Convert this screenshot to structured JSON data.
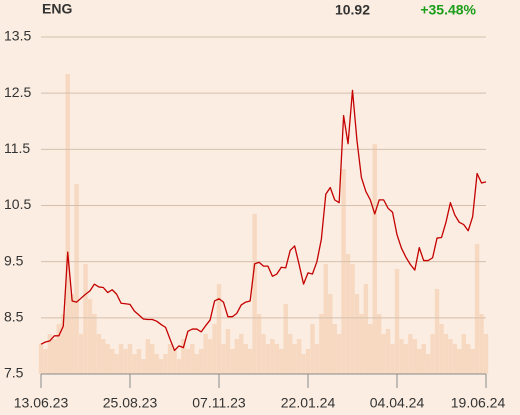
{
  "header": {
    "symbol": "ENG",
    "last": "10.92",
    "change": "+35.48%"
  },
  "chart_data": {
    "type": "line",
    "categories": [
      "13.06.23",
      null,
      null,
      null,
      null,
      null,
      null,
      null,
      null,
      null,
      null,
      null,
      null,
      null,
      null,
      null,
      null,
      null,
      null,
      null,
      "25.08.23",
      null,
      null,
      null,
      null,
      null,
      null,
      null,
      null,
      null,
      null,
      null,
      null,
      null,
      null,
      null,
      null,
      null,
      null,
      null,
      "07.11.23",
      null,
      null,
      null,
      null,
      null,
      null,
      null,
      null,
      null,
      null,
      null,
      null,
      null,
      null,
      null,
      null,
      null,
      null,
      null,
      "22.01.24",
      null,
      null,
      null,
      null,
      null,
      null,
      null,
      null,
      null,
      null,
      null,
      null,
      null,
      null,
      null,
      null,
      null,
      null,
      null,
      "04.04.24",
      null,
      null,
      null,
      null,
      null,
      null,
      null,
      null,
      null,
      null,
      null,
      null,
      null,
      null,
      null,
      null,
      null,
      null,
      null,
      "19.06.24"
    ],
    "series": [
      {
        "color": "#c40000",
        "values": [
          8.03,
          8.07,
          8.09,
          8.18,
          8.18,
          8.35,
          9.67,
          8.8,
          8.78,
          8.85,
          8.92,
          8.98,
          9.1,
          9.05,
          9.04,
          8.95,
          9.0,
          8.92,
          8.76,
          8.75,
          8.74,
          8.62,
          8.55,
          8.48,
          8.47,
          8.47,
          8.44,
          8.38,
          8.33,
          8.12,
          7.92,
          8.0,
          7.97,
          8.26,
          8.3,
          8.3,
          8.25,
          8.36,
          8.46,
          8.8,
          8.84,
          8.78,
          8.52,
          8.52,
          8.58,
          8.73,
          8.78,
          8.8,
          9.46,
          9.49,
          9.42,
          9.42,
          9.24,
          9.28,
          9.4,
          9.39,
          9.7,
          9.78,
          9.45,
          9.1,
          9.3,
          9.28,
          9.5,
          9.9,
          10.7,
          10.82,
          10.6,
          10.55,
          12.1,
          11.6,
          12.55,
          11.66,
          11.0,
          10.75,
          10.6,
          10.35,
          10.6,
          10.6,
          10.45,
          10.38,
          9.98,
          9.74,
          9.58,
          9.45,
          9.35,
          9.75,
          9.52,
          9.52,
          9.57,
          9.92,
          9.93,
          10.2,
          10.55,
          10.33,
          10.2,
          10.16,
          10.05,
          10.3,
          11.07,
          10.9,
          10.92
        ]
      }
    ],
    "volume": {
      "color": "#f7d9c2",
      "values": [
        30,
        25,
        40,
        35,
        50,
        60,
        300,
        80,
        190,
        40,
        110,
        75,
        60,
        40,
        35,
        30,
        25,
        20,
        30,
        25,
        30,
        20,
        25,
        15,
        35,
        30,
        20,
        15,
        20,
        30,
        25,
        15,
        35,
        25,
        30,
        20,
        25,
        40,
        35,
        50,
        90,
        30,
        45,
        25,
        35,
        40,
        30,
        25,
        160,
        60,
        40,
        30,
        35,
        30,
        25,
        70,
        40,
        30,
        35,
        20,
        25,
        50,
        30,
        60,
        110,
        80,
        50,
        40,
        205,
        120,
        110,
        80,
        60,
        90,
        50,
        230,
        60,
        40,
        45,
        30,
        105,
        35,
        30,
        40,
        35,
        25,
        30,
        20,
        40,
        85,
        50,
        40,
        35,
        30,
        25,
        40,
        30,
        25,
        130,
        60,
        40
      ]
    },
    "ylim": [
      7.5,
      13.5
    ],
    "yticks": [
      7.5,
      8.5,
      9.5,
      10.5,
      11.5,
      12.5,
      13.5
    ],
    "grid": true
  }
}
